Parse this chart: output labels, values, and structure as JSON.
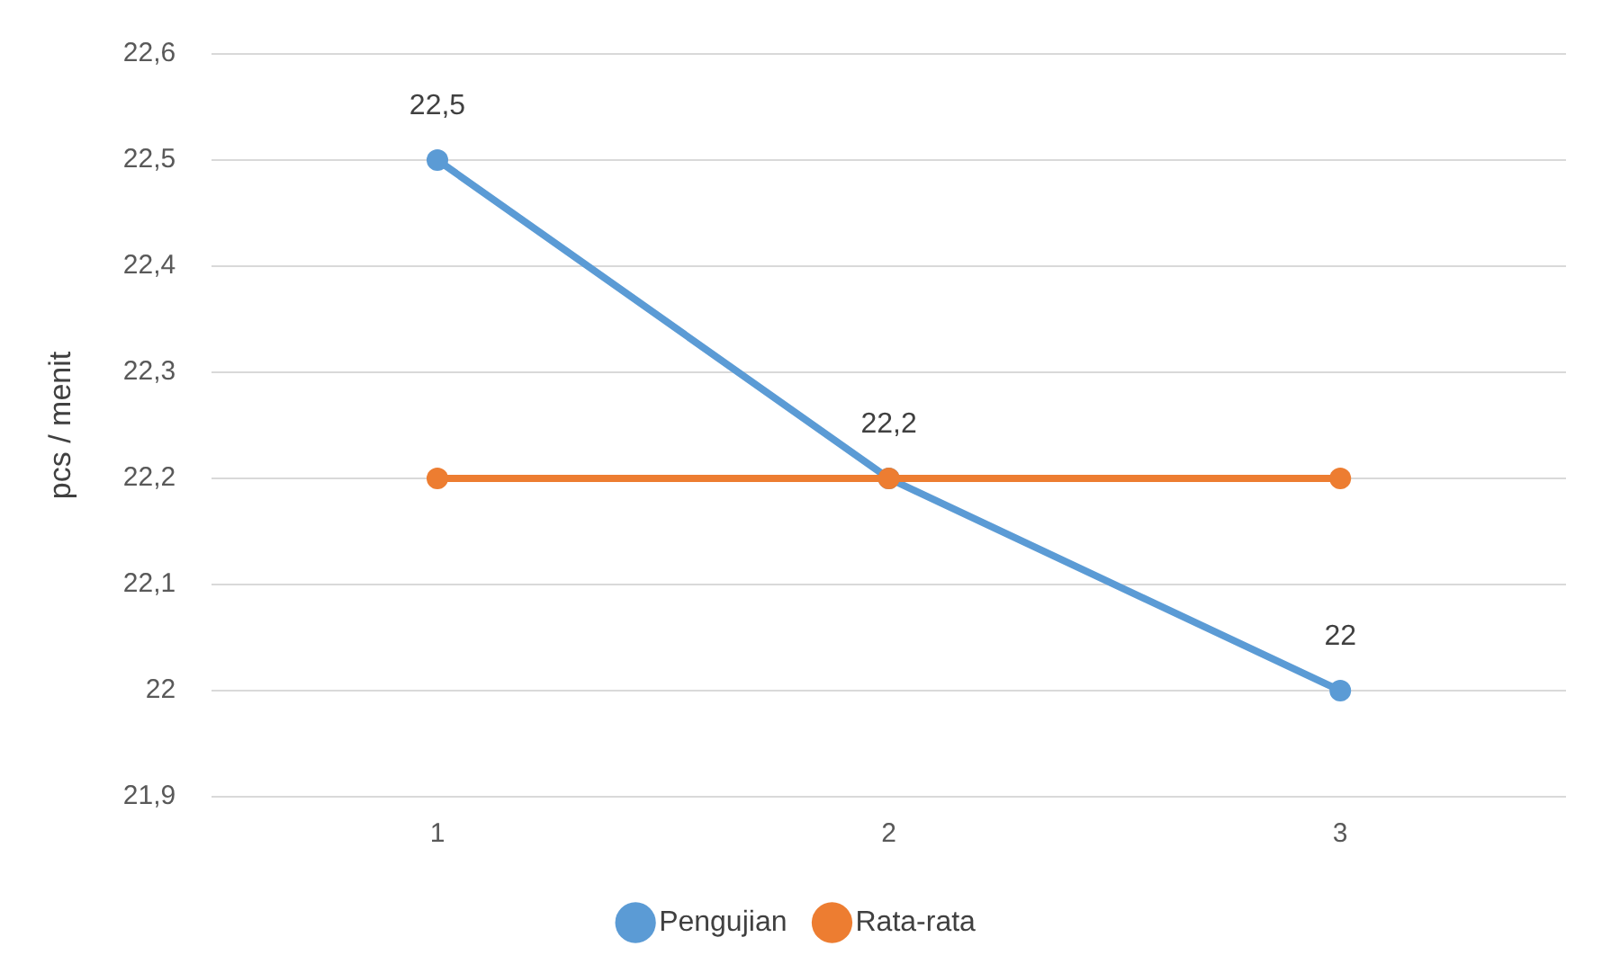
{
  "chart_data": {
    "type": "line",
    "ylabel": "pcs / menit",
    "categories": [
      "1",
      "2",
      "3"
    ],
    "series": [
      {
        "name": "Pengujian",
        "color": "#5b9bd5",
        "values": [
          22.5,
          22.2,
          22.0
        ],
        "value_labels": [
          "22,5",
          "22,2",
          "22"
        ]
      },
      {
        "name": "Rata-rata",
        "color": "#ed7d31",
        "values": [
          22.2,
          22.2,
          22.2
        ]
      }
    ],
    "ylim": [
      21.9,
      22.6
    ],
    "yticks": [
      {
        "value": 21.9,
        "label": "21,9"
      },
      22,
      {
        "value": 22.1,
        "label": "22,1"
      },
      {
        "value": 22.2,
        "label": "22,2"
      },
      {
        "value": 22.3,
        "label": "22,3"
      },
      {
        "value": 22.4,
        "label": "22,4"
      },
      {
        "value": 22.5,
        "label": "22,5"
      },
      {
        "value": 22.6,
        "label": "22,6"
      }
    ],
    "grid": "y",
    "legend": "bottom",
    "marker": "circle",
    "line_style": "solid"
  }
}
